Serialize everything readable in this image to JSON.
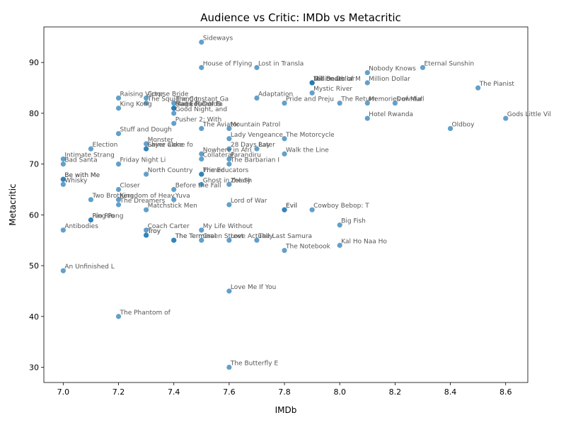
{
  "chart_data": {
    "type": "scatter",
    "title": "Audience vs Critic: IMDb vs Metacritic",
    "xlabel": "IMDb",
    "ylabel": "Metacritic",
    "xlim": [
      6.93,
      8.68
    ],
    "ylim": [
      27,
      97
    ],
    "xticks": [
      "7.0",
      "7.2",
      "7.4",
      "7.6",
      "7.8",
      "8.0",
      "8.2",
      "8.4",
      "8.6"
    ],
    "yticks": [
      "30",
      "40",
      "50",
      "60",
      "70",
      "80",
      "90"
    ],
    "grid": false,
    "point_color": "#1f77b4",
    "points": [
      {
        "x": 7.5,
        "y": 94,
        "label": "Sideways"
      },
      {
        "x": 7.5,
        "y": 89,
        "label": "House of Flying"
      },
      {
        "x": 7.7,
        "y": 89,
        "label": "Lost in Transla"
      },
      {
        "x": 8.3,
        "y": 89,
        "label": "Eternal Sunshin"
      },
      {
        "x": 8.1,
        "y": 88,
        "label": "Nobody Knows"
      },
      {
        "x": 7.9,
        "y": 86,
        "label": "Million Dollar"
      },
      {
        "x": 7.9,
        "y": 86,
        "label": "Die Ender"
      },
      {
        "x": 7.9,
        "y": 86,
        "label": "Tell Death of M"
      },
      {
        "x": 8.1,
        "y": 86,
        "label": "Million Dollar"
      },
      {
        "x": 8.5,
        "y": 85,
        "label": "The Pianist"
      },
      {
        "x": 7.9,
        "y": 84,
        "label": "Mystic River"
      },
      {
        "x": 7.2,
        "y": 83,
        "label": "Raising Victor"
      },
      {
        "x": 7.3,
        "y": 83,
        "label": "Corpse Bride"
      },
      {
        "x": 7.7,
        "y": 83,
        "label": "Adaptation"
      },
      {
        "x": 7.3,
        "y": 82,
        "label": "The Squid and t"
      },
      {
        "x": 7.4,
        "y": 82,
        "label": "The Constant Ga"
      },
      {
        "x": 7.8,
        "y": 82,
        "label": "Pride and Preju"
      },
      {
        "x": 8.0,
        "y": 82,
        "label": "The Return"
      },
      {
        "x": 8.1,
        "y": 82,
        "label": "Memories of Mur"
      },
      {
        "x": 8.2,
        "y": 82,
        "label": "Downfall"
      },
      {
        "x": 7.2,
        "y": 81,
        "label": "King Kong"
      },
      {
        "x": 7.4,
        "y": 81,
        "label": "Maria Full of G"
      },
      {
        "x": 7.4,
        "y": 81,
        "label": "Bad Education"
      },
      {
        "x": 7.4,
        "y": 81,
        "label": "Flags of Our Fa"
      },
      {
        "x": 7.4,
        "y": 80,
        "label": "Good Night, and"
      },
      {
        "x": 8.1,
        "y": 79,
        "label": "Hotel Rwanda"
      },
      {
        "x": 8.6,
        "y": 79,
        "label": "Gods Little Vil"
      },
      {
        "x": 7.4,
        "y": 78,
        "label": "Pusher 2: With"
      },
      {
        "x": 7.5,
        "y": 77,
        "label": "The Aviator"
      },
      {
        "x": 7.6,
        "y": 77,
        "label": "Mountain Patrol"
      },
      {
        "x": 8.4,
        "y": 77,
        "label": "Oldboy"
      },
      {
        "x": 7.2,
        "y": 76,
        "label": "Stuff and Dough"
      },
      {
        "x": 7.6,
        "y": 75,
        "label": "Lady Vengeance"
      },
      {
        "x": 7.8,
        "y": 75,
        "label": "The Motorcycle"
      },
      {
        "x": 7.3,
        "y": 74,
        "label": "Monster"
      },
      {
        "x": 7.1,
        "y": 73,
        "label": "Election"
      },
      {
        "x": 7.3,
        "y": 73,
        "label": "Layer Cake"
      },
      {
        "x": 7.3,
        "y": 73,
        "label": "Shine alone fo"
      },
      {
        "x": 7.6,
        "y": 73,
        "label": "28 Days Later"
      },
      {
        "x": 7.7,
        "y": 73,
        "label": "Ray"
      },
      {
        "x": 7.5,
        "y": 72,
        "label": "Nowhere in Afri"
      },
      {
        "x": 7.8,
        "y": 72,
        "label": "Walk the Line"
      },
      {
        "x": 7.0,
        "y": 71,
        "label": "Intimate Strang"
      },
      {
        "x": 7.5,
        "y": 71,
        "label": "Collateral"
      },
      {
        "x": 7.6,
        "y": 71,
        "label": "Parandiru"
      },
      {
        "x": 7.0,
        "y": 70,
        "label": "Bad Santa"
      },
      {
        "x": 7.2,
        "y": 70,
        "label": "Friday Night Li"
      },
      {
        "x": 7.6,
        "y": 70,
        "label": "The Barbarian I"
      },
      {
        "x": 7.3,
        "y": 68,
        "label": "North Country"
      },
      {
        "x": 7.5,
        "y": 68,
        "label": "The Educators"
      },
      {
        "x": 7.5,
        "y": 68,
        "label": "Primer"
      },
      {
        "x": 7.0,
        "y": 67,
        "label": "Be with Me"
      },
      {
        "x": 7.0,
        "y": 67,
        "label": "Be with Me"
      },
      {
        "x": 7.0,
        "y": 66,
        "label": "Whisky"
      },
      {
        "x": 7.5,
        "y": 66,
        "label": "Ghost in the Sh"
      },
      {
        "x": 7.6,
        "y": 66,
        "label": "Zelary"
      },
      {
        "x": 7.2,
        "y": 65,
        "label": "Closer"
      },
      {
        "x": 7.4,
        "y": 65,
        "label": "Before the Fall"
      },
      {
        "x": 7.1,
        "y": 63,
        "label": "Two Brothers"
      },
      {
        "x": 7.2,
        "y": 63,
        "label": "Kingdom of Heav"
      },
      {
        "x": 7.4,
        "y": 63,
        "label": "Yuva"
      },
      {
        "x": 7.2,
        "y": 62,
        "label": "The Dreamers"
      },
      {
        "x": 7.6,
        "y": 62,
        "label": "Lord of War"
      },
      {
        "x": 7.3,
        "y": 61,
        "label": "Matchstick Men"
      },
      {
        "x": 7.8,
        "y": 61,
        "label": "Evil"
      },
      {
        "x": 7.8,
        "y": 61,
        "label": "Evil"
      },
      {
        "x": 7.9,
        "y": 61,
        "label": "Cowboy Bebop: T"
      },
      {
        "x": 7.1,
        "y": 59,
        "label": "Ping Pong"
      },
      {
        "x": 7.1,
        "y": 59,
        "label": "Rio Rio"
      },
      {
        "x": 8.0,
        "y": 58,
        "label": "Big Fish"
      },
      {
        "x": 7.0,
        "y": 57,
        "label": "Antibodies"
      },
      {
        "x": 7.3,
        "y": 57,
        "label": "Coach Carter"
      },
      {
        "x": 7.5,
        "y": 57,
        "label": "My Life Without"
      },
      {
        "x": 7.3,
        "y": 56,
        "label": "Troy"
      },
      {
        "x": 7.3,
        "y": 56,
        "label": "Troy"
      },
      {
        "x": 7.4,
        "y": 55,
        "label": "The Terminal"
      },
      {
        "x": 7.4,
        "y": 55,
        "label": "The Terminal"
      },
      {
        "x": 7.5,
        "y": 55,
        "label": "Green Street"
      },
      {
        "x": 7.6,
        "y": 55,
        "label": "Love Actually"
      },
      {
        "x": 7.7,
        "y": 55,
        "label": "The Last Samura"
      },
      {
        "x": 8.0,
        "y": 54,
        "label": "Kal Ho Naa Ho"
      },
      {
        "x": 7.8,
        "y": 53,
        "label": "The Notebook"
      },
      {
        "x": 7.0,
        "y": 49,
        "label": "An Unfinished L"
      },
      {
        "x": 7.6,
        "y": 45,
        "label": "Love Me If You"
      },
      {
        "x": 7.2,
        "y": 40,
        "label": "The Phantom of"
      },
      {
        "x": 7.6,
        "y": 30,
        "label": "The Butterfly E"
      }
    ]
  }
}
